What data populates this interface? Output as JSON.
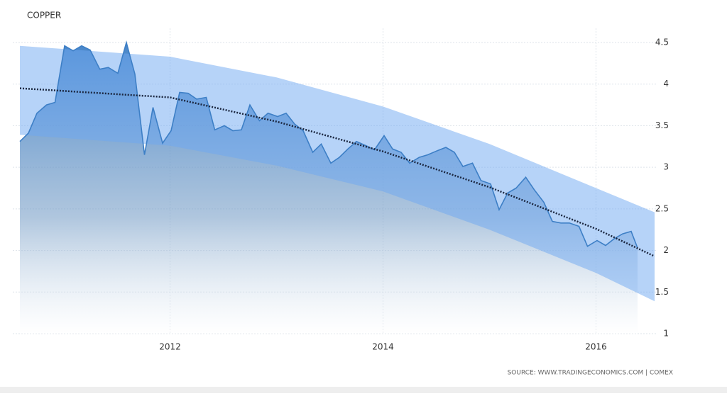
{
  "chart_data": {
    "type": "line",
    "title": "COPPER",
    "source": "SOURCE: WWW.TRADINGECONOMICS.COM | COMEX",
    "x": [
      2010.59,
      2010.67,
      2010.75,
      2010.84,
      2010.92,
      2011.01,
      2011.09,
      2011.17,
      2011.25,
      2011.34,
      2011.42,
      2011.51,
      2011.59,
      2011.67,
      2011.76,
      2011.84,
      2011.93,
      2012.01,
      2012.09,
      2012.17,
      2012.25,
      2012.34,
      2012.42,
      2012.51,
      2012.59,
      2012.67,
      2012.75,
      2012.84,
      2012.92,
      2013.01,
      2013.09,
      2013.17,
      2013.25,
      2013.34,
      2013.42,
      2013.51,
      2013.59,
      2013.67,
      2013.75,
      2013.84,
      2013.92,
      2014.01,
      2014.09,
      2014.17,
      2014.25,
      2014.34,
      2014.42,
      2014.51,
      2014.59,
      2014.67,
      2014.75,
      2014.84,
      2014.92,
      2015.01,
      2015.09,
      2015.17,
      2015.25,
      2015.34,
      2015.42,
      2015.51,
      2015.59,
      2015.67,
      2015.75,
      2015.84,
      2015.92,
      2016.01,
      2016.09,
      2016.17,
      2016.25,
      2016.33,
      2016.39
    ],
    "values": [
      3.31,
      3.41,
      3.65,
      3.75,
      3.78,
      4.46,
      4.4,
      4.46,
      4.41,
      4.18,
      4.2,
      4.13,
      4.5,
      4.12,
      3.15,
      3.72,
      3.29,
      3.44,
      3.9,
      3.89,
      3.82,
      3.84,
      3.45,
      3.5,
      3.44,
      3.45,
      3.75,
      3.56,
      3.65,
      3.61,
      3.65,
      3.52,
      3.44,
      3.18,
      3.28,
      3.05,
      3.12,
      3.22,
      3.31,
      3.26,
      3.21,
      3.38,
      3.22,
      3.18,
      3.05,
      3.12,
      3.15,
      3.2,
      3.24,
      3.18,
      3.01,
      3.05,
      2.84,
      2.8,
      2.49,
      2.69,
      2.75,
      2.88,
      2.73,
      2.58,
      2.35,
      2.33,
      2.33,
      2.29,
      2.05,
      2.12,
      2.06,
      2.14,
      2.2,
      2.23,
      2.03
    ],
    "color": "#3d7fc6",
    "band": {
      "x": [
        2010.59,
        2012,
        2013,
        2014,
        2015,
        2016,
        2016.55
      ],
      "upper": [
        4.46,
        4.33,
        4.08,
        3.73,
        3.28,
        2.75,
        2.46
      ],
      "lower": [
        3.39,
        3.26,
        3.02,
        2.71,
        2.25,
        1.73,
        1.39
      ],
      "color": "#6ea8f2"
    },
    "trend": {
      "x": [
        2010.59,
        2012,
        2013,
        2014,
        2015,
        2016,
        2016.55
      ],
      "values": [
        3.95,
        3.84,
        3.55,
        3.19,
        2.76,
        2.26,
        1.93
      ],
      "color": "#1b2740"
    },
    "xlim": [
      2010.59,
      2016.55
    ],
    "xticks": [
      2012,
      2014,
      2016
    ],
    "ylim": [
      1,
      4.5
    ],
    "yticks": [
      1,
      1.5,
      2,
      2.5,
      3,
      3.5,
      4,
      4.5
    ],
    "grid": true
  }
}
